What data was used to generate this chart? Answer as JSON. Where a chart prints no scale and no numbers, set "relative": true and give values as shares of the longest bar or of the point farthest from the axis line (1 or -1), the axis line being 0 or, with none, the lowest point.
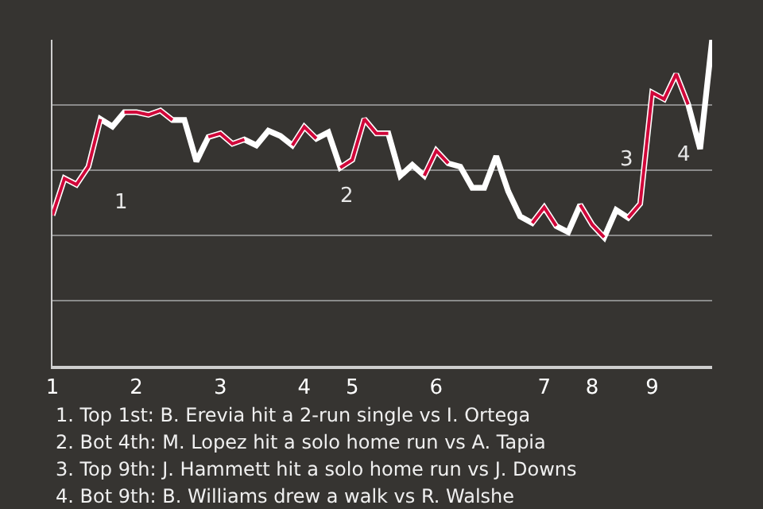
{
  "chart_data": {
    "type": "line",
    "relative": true,
    "categories": [
      "1",
      null,
      null,
      null,
      null,
      null,
      null,
      "2",
      null,
      null,
      null,
      null,
      null,
      null,
      "3",
      null,
      null,
      null,
      null,
      null,
      null,
      "4",
      null,
      null,
      null,
      "5",
      null,
      null,
      null,
      null,
      null,
      null,
      "6",
      null,
      null,
      null,
      null,
      null,
      null,
      null,
      null,
      "7",
      null,
      null,
      null,
      "8",
      null,
      null,
      null,
      null,
      "9",
      null,
      null,
      null,
      null,
      null
    ],
    "series": [
      {
        "color": "#d0073a",
        "values": [
          0.462,
          0.575,
          0.556,
          0.611,
          0.757,
          null,
          0.778,
          0.778,
          0.77,
          0.783,
          0.754,
          null,
          null,
          0.702,
          0.713,
          0.681,
          0.694,
          null,
          null,
          null,
          0.676,
          0.733,
          0.697,
          null,
          0.608,
          0.632,
          0.757,
          0.713,
          0.713,
          null,
          null,
          0.583,
          0.66,
          0.621,
          null,
          null,
          null,
          null,
          null,
          null,
          0.438,
          0.486,
          0.429,
          null,
          0.494,
          0.433,
          0.394,
          null,
          0.454,
          0.497,
          0.838,
          0.818,
          0.895,
          0.802,
          null,
          null
        ]
      },
      {
        "color": "#ffffff",
        "values": [
          0.462,
          0.575,
          0.556,
          0.611,
          0.757,
          0.734,
          0.778,
          0.778,
          0.77,
          0.783,
          0.754,
          0.754,
          0.627,
          0.702,
          0.713,
          0.681,
          0.694,
          0.676,
          0.721,
          0.705,
          0.676,
          0.733,
          0.697,
          0.716,
          0.608,
          0.632,
          0.757,
          0.713,
          0.713,
          0.583,
          0.616,
          0.583,
          0.66,
          0.621,
          0.611,
          0.546,
          0.546,
          0.643,
          0.535,
          0.458,
          0.438,
          0.486,
          0.429,
          0.41,
          0.494,
          0.433,
          0.394,
          0.478,
          0.454,
          0.497,
          0.838,
          0.818,
          0.895,
          0.802,
          0.665,
          1
        ]
      }
    ],
    "annotations": [
      {
        "text": "1"
      },
      {
        "text": "2"
      },
      {
        "text": "3"
      },
      {
        "text": "4"
      },
      "1. Top 1st: B. Erevia hit a 2-run single vs I. Ortega",
      "2. Bot 4th: M. Lopez hit a solo home run vs A. Tapia",
      "3. Top 9th: J. Hammett hit a solo home run vs J. Downs",
      "4. Bot 9th: B. Williams drew a walk vs R. Walshe"
    ],
    "grid": "y",
    "marker": "none",
    "line_style": "solid"
  }
}
